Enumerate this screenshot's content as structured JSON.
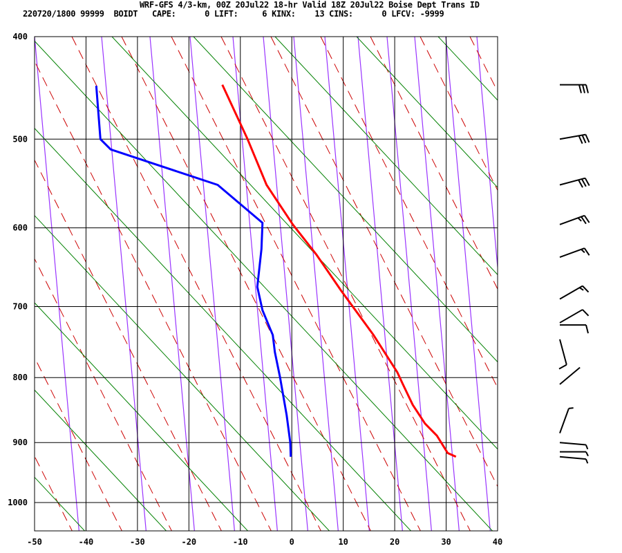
{
  "header": {
    "title": "WRF-GFS 4/3-km, 00Z 20Jul22 18-hr Valid 18Z 20Jul22 Boise Dept Trans ID",
    "subtitle": "220720/1800 99999  BOIDT   CAPE:      0 LIFT:     6 KINX:    13 CINS:      0 LFCV: -9999"
  },
  "chart_data": {
    "type": "line",
    "subtype": "skew-T log-p sounding",
    "title": "WRF-GFS 4/3-km, 00Z 20Jul22 18-hr Valid 18Z 20Jul22 Boise Dept Trans ID",
    "xlabel": "",
    "ylabel": "",
    "xlim": [
      -50,
      40
    ],
    "ylim": [
      1050,
      400
    ],
    "x_ticks": [
      -50,
      -40,
      -30,
      -20,
      -10,
      0,
      10,
      20,
      30,
      40
    ],
    "y_ticks": [
      400,
      500,
      600,
      700,
      800,
      900,
      1000
    ],
    "grid": true,
    "colors": {
      "temperature": "#ff0000",
      "dewpoint": "#0000ff",
      "isotherm_lines": "#9933ff",
      "dry_adiabats": "#cc0000",
      "moist_adiabats": "#008000",
      "grid": "#000000"
    },
    "series": [
      {
        "key": "temperature",
        "points": [
          [
            445,
            -13.5
          ],
          [
            500,
            -8.6
          ],
          [
            550,
            -4.9
          ],
          [
            596,
            0.2
          ],
          [
            633,
            4.8
          ],
          [
            679,
            9.6
          ],
          [
            738,
            15.8
          ],
          [
            792,
            20.5
          ],
          [
            810,
            21.6
          ],
          [
            841,
            23.5
          ],
          [
            870,
            25.9
          ],
          [
            889,
            28.2
          ],
          [
            917,
            30.3
          ],
          [
            923,
            31.9
          ]
        ]
      },
      {
        "key": "dewpoint",
        "points": [
          [
            446,
            -38.0
          ],
          [
            500,
            -37.2
          ],
          [
            511,
            -35.2
          ],
          [
            550,
            -14.4
          ],
          [
            594,
            -5.7
          ],
          [
            626,
            -5.9
          ],
          [
            674,
            -6.7
          ],
          [
            705,
            -5.7
          ],
          [
            739,
            -3.7
          ],
          [
            763,
            -3.3
          ],
          [
            799,
            -2.3
          ],
          [
            857,
            -1.0
          ],
          [
            900,
            -0.3
          ],
          [
            923,
            -0.2
          ]
        ]
      }
    ],
    "wind_barbs": [
      {
        "pressure": 445,
        "direction": 270,
        "speed_kt": 30
      },
      {
        "pressure": 500,
        "direction": 260,
        "speed_kt": 30
      },
      {
        "pressure": 550,
        "direction": 255,
        "speed_kt": 30
      },
      {
        "pressure": 596,
        "direction": 250,
        "speed_kt": 25
      },
      {
        "pressure": 636,
        "direction": 250,
        "speed_kt": 15
      },
      {
        "pressure": 690,
        "direction": 240,
        "speed_kt": 15
      },
      {
        "pressure": 722,
        "direction": 240,
        "speed_kt": 10
      },
      {
        "pressure": 725,
        "direction": 270,
        "speed_kt": 10
      },
      {
        "pressure": 745,
        "direction": 345,
        "speed_kt": 10
      },
      {
        "pressure": 810,
        "direction": 230,
        "speed_kt": 0
      },
      {
        "pressure": 885,
        "direction": 200,
        "speed_kt": 5
      },
      {
        "pressure": 900,
        "direction": 275,
        "speed_kt": 5
      },
      {
        "pressure": 915,
        "direction": 270,
        "speed_kt": 5
      },
      {
        "pressure": 923,
        "direction": 275,
        "speed_kt": 5
      }
    ]
  }
}
